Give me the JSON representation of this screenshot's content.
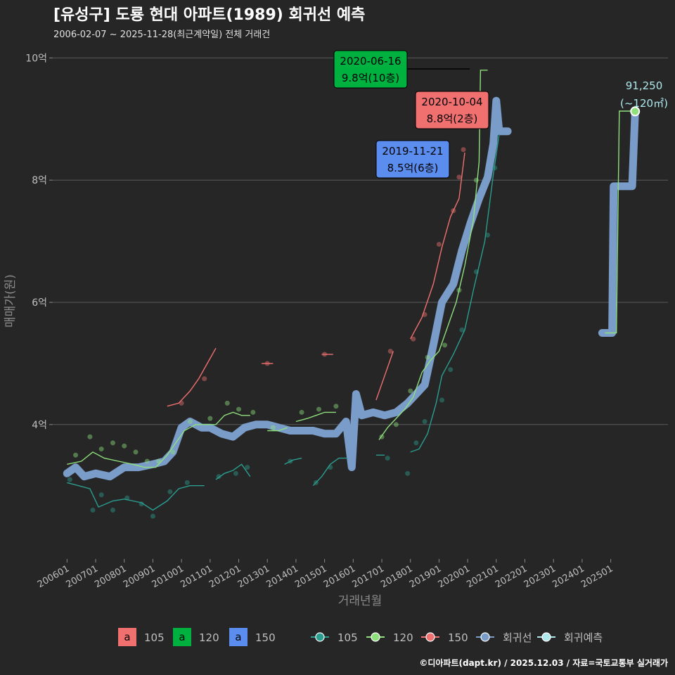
{
  "chart_data": {
    "type": "line",
    "title": "[유성구] 도룡 현대 아파트(1989) 회귀선 예측",
    "subtitle": "2006-02-07 ~ 2025-11-28(최근계약일) 전체 거래건",
    "xlabel": "거래년월",
    "ylabel": "매매가(원)",
    "ylim": [
      1.8,
      10.2
    ],
    "y_ticks": [
      {
        "v": 4,
        "label": "4억"
      },
      {
        "v": 6,
        "label": "6억"
      },
      {
        "v": 8,
        "label": "8억"
      },
      {
        "v": 10,
        "label": "10억"
      }
    ],
    "xlim": [
      2005.5,
      2027.0
    ],
    "x_ticks": [
      {
        "v": 2006.0,
        "label": "200601"
      },
      {
        "v": 2007.0,
        "label": "200701"
      },
      {
        "v": 2008.0,
        "label": "200801"
      },
      {
        "v": 2009.0,
        "label": "200901"
      },
      {
        "v": 2010.0,
        "label": "201001"
      },
      {
        "v": 2011.0,
        "label": "201101"
      },
      {
        "v": 2012.0,
        "label": "201201"
      },
      {
        "v": 2013.0,
        "label": "201301"
      },
      {
        "v": 2014.0,
        "label": "201401"
      },
      {
        "v": 2015.0,
        "label": "201501"
      },
      {
        "v": 2016.0,
        "label": "201601"
      },
      {
        "v": 2017.0,
        "label": "201701"
      },
      {
        "v": 2018.0,
        "label": "201801"
      },
      {
        "v": 2019.0,
        "label": "201901"
      },
      {
        "v": 2020.0,
        "label": "202001"
      },
      {
        "v": 2021.0,
        "label": "202101"
      },
      {
        "v": 2022.0,
        "label": "202201"
      },
      {
        "v": 2023.0,
        "label": "202301"
      },
      {
        "v": 2024.0,
        "label": "202401"
      },
      {
        "v": 2025.0,
        "label": "202501"
      }
    ],
    "colors": {
      "105": "#2a9d8f",
      "120": "#8fe07d",
      "150": "#f07070",
      "regression": "#7a9cc9",
      "forecast": "#aee8ec"
    },
    "series": [
      {
        "name": "105",
        "key": "105",
        "line": [
          [
            2006.0,
            3.05
          ],
          [
            2006.4,
            3.0
          ],
          [
            2006.8,
            2.95
          ],
          [
            2007.1,
            2.65
          ],
          [
            2007.6,
            2.75
          ],
          [
            2008.0,
            2.78
          ],
          [
            2008.6,
            2.72
          ],
          [
            2009.0,
            2.6
          ],
          [
            2009.5,
            2.75
          ],
          [
            2009.9,
            2.95
          ],
          [
            2010.3,
            3.0
          ],
          [
            2010.8,
            3.0
          ]
        ],
        "line2": [
          [
            2011.2,
            3.1
          ],
          [
            2011.5,
            3.2
          ],
          [
            2011.8,
            3.25
          ],
          [
            2012.1,
            3.35
          ],
          [
            2012.4,
            3.15
          ]
        ],
        "line3": [
          [
            2013.6,
            3.35
          ],
          [
            2013.9,
            3.42
          ],
          [
            2014.2,
            3.45
          ]
        ],
        "line4": [
          [
            2014.6,
            3.0
          ],
          [
            2014.9,
            3.15
          ],
          [
            2015.2,
            3.35
          ],
          [
            2015.5,
            3.45
          ],
          [
            2015.8,
            3.45
          ]
        ],
        "line5": [
          [
            2016.8,
            3.5
          ],
          [
            2017.1,
            3.5
          ]
        ],
        "line6": [
          [
            2018.0,
            3.55
          ],
          [
            2018.3,
            3.6
          ],
          [
            2018.6,
            3.85
          ],
          [
            2018.9,
            4.35
          ],
          [
            2019.1,
            4.8
          ],
          [
            2019.5,
            5.15
          ],
          [
            2019.9,
            5.55
          ],
          [
            2020.2,
            6.2
          ],
          [
            2020.6,
            7.0
          ],
          [
            2020.9,
            8.1
          ],
          [
            2021.1,
            8.75
          ]
        ],
        "points": [
          [
            2006.1,
            3.1
          ],
          [
            2006.9,
            2.6
          ],
          [
            2007.2,
            2.85
          ],
          [
            2007.6,
            2.6
          ],
          [
            2008.1,
            2.8
          ],
          [
            2008.6,
            2.7
          ],
          [
            2009.0,
            2.5
          ],
          [
            2009.6,
            2.9
          ],
          [
            2010.2,
            3.05
          ],
          [
            2011.3,
            3.15
          ],
          [
            2011.9,
            3.2
          ],
          [
            2012.3,
            3.3
          ],
          [
            2013.8,
            3.4
          ],
          [
            2014.7,
            3.05
          ],
          [
            2015.2,
            3.3
          ],
          [
            2017.2,
            3.45
          ],
          [
            2017.9,
            3.2
          ],
          [
            2018.2,
            3.7
          ],
          [
            2018.5,
            4.05
          ],
          [
            2019.1,
            4.4
          ],
          [
            2019.4,
            4.9
          ],
          [
            2019.8,
            5.55
          ],
          [
            2020.3,
            6.5
          ],
          [
            2020.7,
            7.1
          ],
          [
            2020.95,
            8.2
          ]
        ]
      },
      {
        "name": "120",
        "key": "120",
        "line": [
          [
            2006.0,
            3.35
          ],
          [
            2006.5,
            3.4
          ],
          [
            2006.9,
            3.55
          ],
          [
            2007.3,
            3.45
          ],
          [
            2007.8,
            3.4
          ],
          [
            2008.3,
            3.35
          ],
          [
            2008.7,
            3.3
          ],
          [
            2009.1,
            3.3
          ],
          [
            2009.5,
            3.5
          ],
          [
            2009.8,
            3.7
          ],
          [
            2010.1,
            3.9
          ],
          [
            2010.5,
            4.0
          ],
          [
            2010.9,
            4.0
          ],
          [
            2011.2,
            4.0
          ],
          [
            2011.5,
            4.15
          ],
          [
            2011.8,
            4.2
          ],
          [
            2012.1,
            4.15
          ],
          [
            2012.4,
            4.15
          ]
        ],
        "line2": [
          [
            2013.0,
            3.9
          ],
          [
            2013.4,
            3.9
          ],
          [
            2013.7,
            3.95
          ]
        ],
        "line3": [
          [
            2014.0,
            4.05
          ],
          [
            2014.4,
            4.1
          ],
          [
            2014.7,
            4.15
          ],
          [
            2015.0,
            4.2
          ],
          [
            2015.4,
            4.2
          ]
        ],
        "line4": [
          [
            2016.9,
            3.75
          ],
          [
            2017.2,
            3.95
          ],
          [
            2017.5,
            4.1
          ],
          [
            2017.8,
            4.25
          ],
          [
            2018.1,
            4.45
          ],
          [
            2018.4,
            4.85
          ],
          [
            2018.7,
            5.05
          ],
          [
            2019.0,
            5.2
          ],
          [
            2019.3,
            5.6
          ],
          [
            2019.6,
            6.0
          ],
          [
            2019.9,
            6.6
          ],
          [
            2020.2,
            7.35
          ],
          [
            2020.4,
            8.3
          ],
          [
            2020.45,
            9.8
          ],
          [
            2020.7,
            9.8
          ]
        ],
        "line5": [
          [
            2024.8,
            5.5
          ],
          [
            2025.2,
            5.5
          ],
          [
            2025.3,
            9.13
          ],
          [
            2025.7,
            9.13
          ]
        ],
        "points": [
          [
            2006.3,
            3.5
          ],
          [
            2006.8,
            3.8
          ],
          [
            2007.2,
            3.6
          ],
          [
            2007.6,
            3.7
          ],
          [
            2008.0,
            3.65
          ],
          [
            2008.4,
            3.55
          ],
          [
            2008.8,
            3.4
          ],
          [
            2009.2,
            3.4
          ],
          [
            2009.7,
            3.55
          ],
          [
            2010.3,
            4.05
          ],
          [
            2011.0,
            4.1
          ],
          [
            2011.6,
            4.35
          ],
          [
            2012.0,
            4.25
          ],
          [
            2012.5,
            4.2
          ],
          [
            2013.2,
            3.95
          ],
          [
            2014.2,
            4.2
          ],
          [
            2014.8,
            4.25
          ],
          [
            2015.4,
            4.3
          ],
          [
            2017.0,
            3.8
          ],
          [
            2017.5,
            4.0
          ],
          [
            2018.0,
            4.55
          ],
          [
            2018.6,
            5.1
          ],
          [
            2019.2,
            5.3
          ],
          [
            2019.7,
            6.2
          ],
          [
            2020.3,
            8.0
          ]
        ]
      },
      {
        "name": "150",
        "key": "150",
        "line": [
          [
            2009.5,
            4.3
          ],
          [
            2009.9,
            4.35
          ],
          [
            2010.3,
            4.55
          ],
          [
            2010.6,
            4.75
          ],
          [
            2010.9,
            5.0
          ],
          [
            2011.2,
            5.25
          ]
        ],
        "line2": [
          [
            2012.8,
            5.0
          ],
          [
            2013.2,
            5.0
          ]
        ],
        "line3": [
          [
            2014.9,
            5.15
          ],
          [
            2015.3,
            5.15
          ]
        ],
        "line4": [
          [
            2016.8,
            4.4
          ],
          [
            2017.1,
            4.8
          ],
          [
            2017.4,
            5.2
          ]
        ],
        "line5": [
          [
            2018.0,
            5.4
          ],
          [
            2018.4,
            5.75
          ],
          [
            2018.8,
            6.3
          ],
          [
            2019.1,
            6.9
          ],
          [
            2019.4,
            7.4
          ],
          [
            2019.7,
            7.7
          ],
          [
            2019.9,
            8.45
          ]
        ],
        "points": [
          [
            2010.0,
            4.35
          ],
          [
            2010.8,
            4.75
          ],
          [
            2013.0,
            5.0
          ],
          [
            2015.0,
            5.15
          ],
          [
            2017.3,
            5.2
          ],
          [
            2018.1,
            5.4
          ],
          [
            2018.5,
            5.8
          ],
          [
            2019.0,
            6.95
          ],
          [
            2019.5,
            7.5
          ],
          [
            2019.85,
            8.5
          ],
          [
            2019.7,
            8.05
          ]
        ]
      },
      {
        "name": "회귀선",
        "key": "regression",
        "line": [
          [
            2006.0,
            3.2
          ],
          [
            2006.3,
            3.3
          ],
          [
            2006.6,
            3.15
          ],
          [
            2007.0,
            3.2
          ],
          [
            2007.5,
            3.15
          ],
          [
            2008.0,
            3.3
          ],
          [
            2008.5,
            3.3
          ],
          [
            2009.0,
            3.35
          ],
          [
            2009.4,
            3.4
          ],
          [
            2009.7,
            3.55
          ],
          [
            2010.0,
            3.95
          ],
          [
            2010.3,
            4.05
          ],
          [
            2010.7,
            3.95
          ],
          [
            2011.0,
            3.95
          ],
          [
            2011.4,
            3.85
          ],
          [
            2011.8,
            3.8
          ],
          [
            2012.2,
            3.95
          ],
          [
            2012.6,
            4.0
          ],
          [
            2013.0,
            4.0
          ],
          [
            2013.4,
            3.95
          ],
          [
            2013.8,
            3.9
          ],
          [
            2014.2,
            3.9
          ],
          [
            2014.6,
            3.9
          ],
          [
            2015.0,
            3.85
          ],
          [
            2015.4,
            3.85
          ],
          [
            2015.75,
            4.05
          ],
          [
            2015.95,
            3.3
          ],
          [
            2016.1,
            4.5
          ],
          [
            2016.3,
            4.15
          ],
          [
            2016.7,
            4.2
          ],
          [
            2017.1,
            4.15
          ],
          [
            2017.5,
            4.2
          ],
          [
            2017.9,
            4.35
          ],
          [
            2018.2,
            4.5
          ],
          [
            2018.5,
            4.65
          ],
          [
            2018.8,
            5.3
          ],
          [
            2019.1,
            6.0
          ],
          [
            2019.5,
            6.3
          ],
          [
            2019.8,
            6.85
          ],
          [
            2020.1,
            7.3
          ],
          [
            2020.4,
            7.7
          ],
          [
            2020.7,
            8.05
          ],
          [
            2020.9,
            8.6
          ],
          [
            2021.0,
            9.3
          ],
          [
            2021.1,
            8.8
          ],
          [
            2021.4,
            8.8
          ]
        ],
        "line2": [
          [
            2024.7,
            5.5
          ],
          [
            2025.05,
            5.5
          ],
          [
            2025.1,
            7.9
          ],
          [
            2025.5,
            7.9
          ],
          [
            2025.75,
            7.9
          ],
          [
            2025.85,
            9.1
          ]
        ]
      }
    ],
    "forecast_point": {
      "x": 2025.85,
      "y": 9.125,
      "label": "91,250",
      "sublabel": "(~120㎡)"
    },
    "annotations": [
      {
        "key": "120",
        "date": "2020-06-16",
        "value": "9.8억(10층)",
        "x": 2020.45,
        "y": 9.8
      },
      {
        "key": "150",
        "date": "2020-10-04",
        "value": "8.8억(2층)",
        "x": 2020.75,
        "y": 8.8
      },
      {
        "key": "regression_box",
        "date": "2019-11-21",
        "value": "8.5억(6층)",
        "x": 2019.85,
        "y": 8.5
      }
    ],
    "legend": {
      "boxes": [
        {
          "letter": "a",
          "label": "105",
          "color": "#f07070"
        },
        {
          "letter": "a",
          "label": "120",
          "color": "#00b140"
        },
        {
          "letter": "a",
          "label": "150",
          "color": "#5b8dee"
        }
      ],
      "lines": [
        {
          "label": "105",
          "color": "#2a9d8f"
        },
        {
          "label": "120",
          "color": "#8fe07d"
        },
        {
          "label": "150",
          "color": "#f07070"
        },
        {
          "label": "회귀선",
          "color": "#7a9cc9"
        },
        {
          "label": "회귀예측",
          "color": "#aee8ec"
        }
      ]
    },
    "footer": "©디아파트(dapt.kr) / 2025.12.03 / 자료=국토교통부 실거래가"
  }
}
